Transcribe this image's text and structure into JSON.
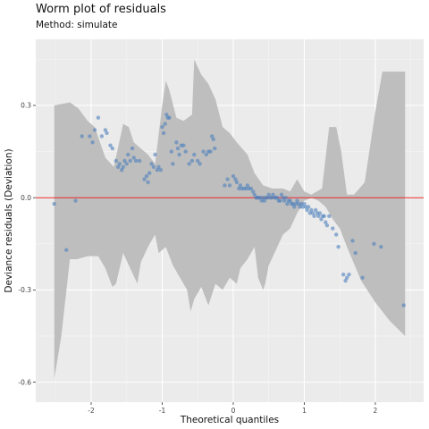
{
  "chart_data": {
    "type": "scatter",
    "title": "Worm plot of residuals",
    "subtitle": "Method: simulate",
    "xlabel": "Theoretical quantiles",
    "ylabel": "Deviance residuals (Deviation)",
    "xlim": [
      -2.78,
      2.68
    ],
    "ylim": [
      -0.665,
      0.515
    ],
    "x_ticks": [
      -2,
      -1,
      0,
      1,
      2
    ],
    "x_tick_labels": [
      "-2",
      "-1",
      "0",
      "1",
      "2"
    ],
    "y_ticks": [
      -0.6,
      -0.3,
      0.0,
      0.3
    ],
    "y_tick_labels": [
      "-0.6",
      "-0.3",
      "0.0",
      "0.3"
    ],
    "grid": true,
    "reference_line": {
      "y": 0,
      "color": "#e8262a"
    },
    "colors": {
      "panel": "#ebebeb",
      "grid_major": "#ffffff",
      "band": "#bebebe",
      "points": "#4f81bd"
    },
    "band": {
      "upper": [
        [
          -2.52,
          0.3
        ],
        [
          -2.3,
          0.31
        ],
        [
          -2.18,
          0.29
        ],
        [
          -2.05,
          0.25
        ],
        [
          -1.95,
          0.23
        ],
        [
          -1.8,
          0.13
        ],
        [
          -1.68,
          0.1
        ],
        [
          -1.55,
          0.24
        ],
        [
          -1.47,
          0.23
        ],
        [
          -1.4,
          0.18
        ],
        [
          -1.3,
          0.16
        ],
        [
          -1.2,
          0.14
        ],
        [
          -1.1,
          0.11
        ],
        [
          -1.0,
          0.3
        ],
        [
          -0.95,
          0.38
        ],
        [
          -0.9,
          0.35
        ],
        [
          -0.8,
          0.26
        ],
        [
          -0.7,
          0.25
        ],
        [
          -0.58,
          0.27
        ],
        [
          -0.55,
          0.45
        ],
        [
          -0.45,
          0.4
        ],
        [
          -0.35,
          0.37
        ],
        [
          -0.25,
          0.32
        ],
        [
          -0.15,
          0.23
        ],
        [
          -0.05,
          0.21
        ],
        [
          0.05,
          0.18
        ],
        [
          0.2,
          0.14
        ],
        [
          0.3,
          0.08
        ],
        [
          0.42,
          0.04
        ],
        [
          0.55,
          0.03
        ],
        [
          0.7,
          0.03
        ],
        [
          0.8,
          0.02
        ],
        [
          0.9,
          0.06
        ],
        [
          1.0,
          0.02
        ],
        [
          1.1,
          0.01
        ],
        [
          1.25,
          0.03
        ],
        [
          1.35,
          0.23
        ],
        [
          1.45,
          0.23
        ],
        [
          1.52,
          0.15
        ],
        [
          1.6,
          0.01
        ],
        [
          1.7,
          0.01
        ],
        [
          1.85,
          0.05
        ],
        [
          2.0,
          0.28
        ],
        [
          2.1,
          0.41
        ],
        [
          2.42,
          0.41
        ]
      ],
      "lower": [
        [
          2.42,
          -0.45
        ],
        [
          2.2,
          -0.4
        ],
        [
          2.0,
          -0.34
        ],
        [
          1.8,
          -0.27
        ],
        [
          1.6,
          -0.16
        ],
        [
          1.5,
          -0.1
        ],
        [
          1.4,
          -0.07
        ],
        [
          1.3,
          -0.03
        ],
        [
          1.2,
          -0.01
        ],
        [
          1.1,
          0.0
        ],
        [
          1.0,
          -0.01
        ],
        [
          0.9,
          -0.05
        ],
        [
          0.8,
          -0.1
        ],
        [
          0.7,
          -0.12
        ],
        [
          0.6,
          -0.17
        ],
        [
          0.5,
          -0.22
        ],
        [
          0.45,
          -0.28
        ],
        [
          0.42,
          -0.3
        ],
        [
          0.35,
          -0.26
        ],
        [
          0.3,
          -0.16
        ],
        [
          0.2,
          -0.2
        ],
        [
          0.1,
          -0.23
        ],
        [
          0.05,
          -0.28
        ],
        [
          -0.05,
          -0.26
        ],
        [
          -0.15,
          -0.3
        ],
        [
          -0.25,
          -0.28
        ],
        [
          -0.35,
          -0.35
        ],
        [
          -0.45,
          -0.29
        ],
        [
          -0.55,
          -0.33
        ],
        [
          -0.6,
          -0.37
        ],
        [
          -0.65,
          -0.3
        ],
        [
          -0.75,
          -0.26
        ],
        [
          -0.85,
          -0.22
        ],
        [
          -0.95,
          -0.16
        ],
        [
          -1.05,
          -0.18
        ],
        [
          -1.1,
          -0.12
        ],
        [
          -1.2,
          -0.16
        ],
        [
          -1.3,
          -0.21
        ],
        [
          -1.35,
          -0.28
        ],
        [
          -1.45,
          -0.23
        ],
        [
          -1.55,
          -0.18
        ],
        [
          -1.65,
          -0.28
        ],
        [
          -1.7,
          -0.29
        ],
        [
          -1.8,
          -0.23
        ],
        [
          -1.9,
          -0.19
        ],
        [
          -2.05,
          -0.19
        ],
        [
          -2.2,
          -0.2
        ],
        [
          -2.3,
          -0.2
        ],
        [
          -2.42,
          -0.45
        ],
        [
          -2.52,
          -0.59
        ]
      ]
    },
    "points": [
      [
        -2.52,
        -0.02
      ],
      [
        -2.35,
        -0.17
      ],
      [
        -2.22,
        -0.01
      ],
      [
        -2.13,
        0.2
      ],
      [
        -2.02,
        0.2
      ],
      [
        -1.98,
        0.18
      ],
      [
        -1.95,
        0.22
      ],
      [
        -1.9,
        0.26
      ],
      [
        -1.85,
        0.2
      ],
      [
        -1.8,
        0.22
      ],
      [
        -1.78,
        0.21
      ],
      [
        -1.73,
        0.17
      ],
      [
        -1.7,
        0.16
      ],
      [
        -1.65,
        0.12
      ],
      [
        -1.62,
        0.1
      ],
      [
        -1.6,
        0.11
      ],
      [
        -1.57,
        0.09
      ],
      [
        -1.55,
        0.1
      ],
      [
        -1.53,
        0.12
      ],
      [
        -1.5,
        0.11
      ],
      [
        -1.48,
        0.14
      ],
      [
        -1.45,
        0.12
      ],
      [
        -1.42,
        0.16
      ],
      [
        -1.4,
        0.13
      ],
      [
        -1.37,
        0.12
      ],
      [
        -1.32,
        0.12
      ],
      [
        -1.25,
        0.06
      ],
      [
        -1.22,
        0.07
      ],
      [
        -1.2,
        0.05
      ],
      [
        -1.18,
        0.08
      ],
      [
        -1.15,
        0.11
      ],
      [
        -1.12,
        0.1
      ],
      [
        -1.1,
        0.14
      ],
      [
        -1.07,
        0.09
      ],
      [
        -1.05,
        0.1
      ],
      [
        -1.02,
        0.09
      ],
      [
        -1.0,
        0.23
      ],
      [
        -0.98,
        0.21
      ],
      [
        -0.96,
        0.24
      ],
      [
        -0.94,
        0.27
      ],
      [
        -0.92,
        0.26
      ],
      [
        -0.9,
        0.26
      ],
      [
        -0.87,
        0.15
      ],
      [
        -0.85,
        0.11
      ],
      [
        -0.8,
        0.18
      ],
      [
        -0.78,
        0.16
      ],
      [
        -0.76,
        0.14
      ],
      [
        -0.73,
        0.17
      ],
      [
        -0.7,
        0.17
      ],
      [
        -0.67,
        0.15
      ],
      [
        -0.62,
        0.11
      ],
      [
        -0.58,
        0.12
      ],
      [
        -0.55,
        0.14
      ],
      [
        -0.5,
        0.12
      ],
      [
        -0.47,
        0.11
      ],
      [
        -0.42,
        0.15
      ],
      [
        -0.38,
        0.14
      ],
      [
        -0.35,
        0.15
      ],
      [
        -0.32,
        0.15
      ],
      [
        -0.3,
        0.2
      ],
      [
        -0.28,
        0.19
      ],
      [
        -0.26,
        0.16
      ],
      [
        -0.12,
        0.04
      ],
      [
        -0.08,
        0.06
      ],
      [
        -0.05,
        0.04
      ],
      [
        0.0,
        0.07
      ],
      [
        0.03,
        0.06
      ],
      [
        0.05,
        0.05
      ],
      [
        0.08,
        0.03
      ],
      [
        0.1,
        0.04
      ],
      [
        0.12,
        0.03
      ],
      [
        0.15,
        0.03
      ],
      [
        0.18,
        0.03
      ],
      [
        0.2,
        0.04
      ],
      [
        0.22,
        0.03
      ],
      [
        0.25,
        0.03
      ],
      [
        0.28,
        0.02
      ],
      [
        0.3,
        0.01
      ],
      [
        0.32,
        0.0
      ],
      [
        0.34,
        0.0
      ],
      [
        0.36,
        0.0
      ],
      [
        0.38,
        0.0
      ],
      [
        0.4,
        -0.01
      ],
      [
        0.42,
        0.0
      ],
      [
        0.44,
        -0.01
      ],
      [
        0.46,
        0.0
      ],
      [
        0.48,
        0.0
      ],
      [
        0.5,
        0.01
      ],
      [
        0.52,
        0.0
      ],
      [
        0.54,
        0.0
      ],
      [
        0.56,
        0.01
      ],
      [
        0.58,
        0.0
      ],
      [
        0.6,
        0.0
      ],
      [
        0.62,
        0.0
      ],
      [
        0.64,
        -0.01
      ],
      [
        0.66,
        -0.01
      ],
      [
        0.68,
        0.01
      ],
      [
        0.7,
        0.0
      ],
      [
        0.72,
        -0.01
      ],
      [
        0.74,
        0.0
      ],
      [
        0.76,
        -0.02
      ],
      [
        0.78,
        -0.01
      ],
      [
        0.8,
        -0.01
      ],
      [
        0.82,
        -0.02
      ],
      [
        0.84,
        -0.02
      ],
      [
        0.86,
        -0.03
      ],
      [
        0.88,
        -0.02
      ],
      [
        0.9,
        -0.01
      ],
      [
        0.92,
        -0.02
      ],
      [
        0.94,
        -0.03
      ],
      [
        0.96,
        -0.02
      ],
      [
        0.98,
        -0.03
      ],
      [
        1.0,
        -0.02
      ],
      [
        1.02,
        -0.03
      ],
      [
        1.04,
        -0.04
      ],
      [
        1.06,
        -0.03
      ],
      [
        1.08,
        -0.05
      ],
      [
        1.1,
        -0.04
      ],
      [
        1.12,
        -0.05
      ],
      [
        1.14,
        -0.06
      ],
      [
        1.16,
        -0.04
      ],
      [
        1.18,
        -0.05
      ],
      [
        1.2,
        -0.06
      ],
      [
        1.22,
        -0.05
      ],
      [
        1.24,
        -0.07
      ],
      [
        1.26,
        -0.06
      ],
      [
        1.28,
        -0.06
      ],
      [
        1.3,
        -0.08
      ],
      [
        1.32,
        -0.09
      ],
      [
        1.35,
        -0.06
      ],
      [
        1.4,
        -0.1
      ],
      [
        1.45,
        -0.12
      ],
      [
        1.48,
        -0.16
      ],
      [
        1.55,
        -0.25
      ],
      [
        1.58,
        -0.27
      ],
      [
        1.6,
        -0.26
      ],
      [
        1.63,
        -0.25
      ],
      [
        1.68,
        -0.14
      ],
      [
        1.72,
        -0.18
      ],
      [
        1.82,
        -0.26
      ],
      [
        1.98,
        -0.15
      ],
      [
        2.08,
        -0.16
      ],
      [
        2.4,
        -0.35
      ]
    ]
  }
}
